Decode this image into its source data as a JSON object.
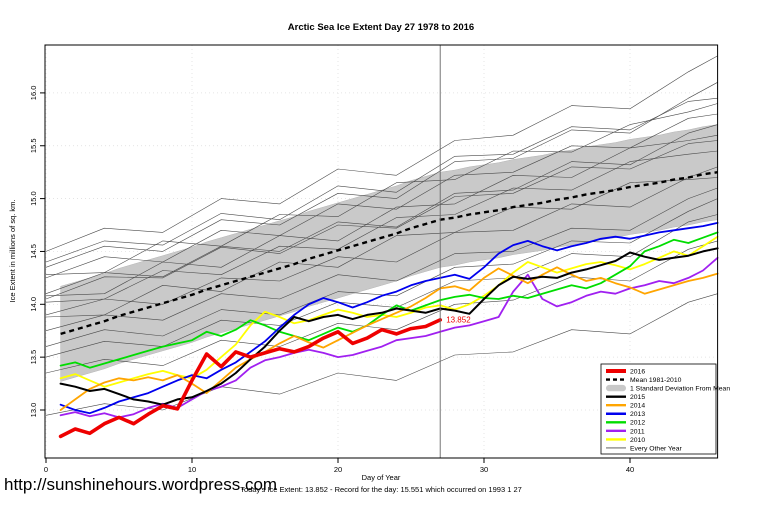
{
  "page": {
    "title": "Arctic Sea Ice Extent Day 27 1978 to 2016",
    "url_watermark": "http://sunshinehours.wordpress.com",
    "caption": "Today's Ice Extent: 13.852  - Record for the day: 15.551 which occurred on 1993 1 27"
  },
  "chart_data": {
    "type": "line",
    "title": "Arctic Sea Ice Extent Day 27 1978 to 2016",
    "xlabel": "Day of Year",
    "ylabel": "Ice Extent in millions of sq. km.",
    "xlim": [
      0,
      46
    ],
    "ylim": [
      12.55,
      16.45
    ],
    "xticks": [
      0,
      10,
      20,
      30,
      40
    ],
    "yticks": [
      13.0,
      13.5,
      14.0,
      14.5,
      15.0,
      15.5,
      16.0
    ],
    "grid": "dotted",
    "grid_color": "#dcdcdc",
    "marker_day": 27,
    "marker_color": "#666666",
    "annotation": {
      "text": "13.852",
      "day": 27,
      "value": 13.852,
      "color": "#ee0000"
    },
    "band": {
      "name": "1 Standard Deviation From Mean",
      "sigma": 0.45,
      "fill": "#c9c9c9",
      "edge": "#b5b5b5"
    },
    "mean": {
      "name": "Mean 1981-2010",
      "color": "#000000",
      "dashed": true,
      "width": 2.4,
      "day_start": 1,
      "values": [
        13.72,
        13.76,
        13.8,
        13.84,
        13.89,
        13.93,
        13.97,
        14.01,
        14.05,
        14.09,
        14.14,
        14.18,
        14.22,
        14.26,
        14.3,
        14.34,
        14.38,
        14.43,
        14.47,
        14.51,
        14.55,
        14.59,
        14.63,
        14.67,
        14.72,
        14.76,
        14.8,
        14.82,
        14.85,
        14.87,
        14.89,
        14.92,
        14.94,
        14.96,
        14.99,
        15.01,
        15.04,
        15.06,
        15.08,
        15.11,
        15.13,
        15.15,
        15.18,
        15.2,
        15.23,
        15.25
      ]
    },
    "series": [
      {
        "name": "2010",
        "color": "#ffff00",
        "width": 1.8,
        "day_start": 1,
        "values": [
          13.3,
          13.34,
          13.28,
          13.22,
          13.26,
          13.3,
          13.34,
          13.37,
          13.33,
          13.3,
          13.38,
          13.5,
          13.62,
          13.8,
          13.93,
          13.88,
          13.82,
          13.85,
          13.9,
          13.95,
          13.92,
          13.88,
          13.9,
          13.88,
          13.92,
          13.97,
          13.99,
          13.95,
          14.0,
          14.08,
          14.18,
          14.3,
          14.4,
          14.35,
          14.3,
          14.34,
          14.38,
          14.4,
          14.37,
          14.33,
          14.38,
          14.44,
          14.5,
          14.46,
          14.55,
          14.64
        ]
      },
      {
        "name": "2011",
        "color": "#a020f0",
        "width": 1.8,
        "day_start": 1,
        "values": [
          12.95,
          12.98,
          12.94,
          12.97,
          12.93,
          12.96,
          13.02,
          13.06,
          13.02,
          13.1,
          13.18,
          13.22,
          13.28,
          13.4,
          13.47,
          13.5,
          13.54,
          13.57,
          13.54,
          13.5,
          13.52,
          13.56,
          13.6,
          13.66,
          13.68,
          13.7,
          13.74,
          13.78,
          13.8,
          13.84,
          13.88,
          14.12,
          14.28,
          14.05,
          13.98,
          14.02,
          14.08,
          14.12,
          14.1,
          14.15,
          14.18,
          14.22,
          14.2,
          14.25,
          14.32,
          14.44
        ]
      },
      {
        "name": "2012",
        "color": "#00dd00",
        "width": 1.8,
        "day_start": 1,
        "values": [
          13.42,
          13.45,
          13.4,
          13.44,
          13.48,
          13.52,
          13.56,
          13.6,
          13.63,
          13.66,
          13.74,
          13.7,
          13.76,
          13.85,
          13.8,
          13.74,
          13.7,
          13.66,
          13.72,
          13.78,
          13.74,
          13.8,
          13.9,
          13.99,
          13.94,
          13.99,
          14.04,
          14.07,
          14.09,
          14.06,
          14.05,
          14.08,
          14.06,
          14.1,
          14.14,
          14.18,
          14.15,
          14.2,
          14.28,
          14.36,
          14.5,
          14.55,
          14.61,
          14.58,
          14.63,
          14.68
        ]
      },
      {
        "name": "2013",
        "color": "#0000ee",
        "width": 1.8,
        "day_start": 1,
        "values": [
          13.05,
          13.0,
          12.97,
          13.02,
          13.08,
          13.12,
          13.16,
          13.22,
          13.28,
          13.33,
          13.3,
          13.38,
          13.45,
          13.55,
          13.65,
          13.78,
          13.9,
          14.0,
          14.06,
          14.02,
          13.97,
          14.02,
          14.08,
          14.12,
          14.18,
          14.22,
          14.25,
          14.28,
          14.24,
          14.35,
          14.48,
          14.56,
          14.6,
          14.55,
          14.51,
          14.55,
          14.58,
          14.62,
          14.64,
          14.62,
          14.65,
          14.68,
          14.7,
          14.72,
          14.74,
          14.77
        ]
      },
      {
        "name": "2014",
        "color": "#ffa500",
        "width": 1.8,
        "day_start": 1,
        "values": [
          13.0,
          13.1,
          13.2,
          13.26,
          13.3,
          13.28,
          13.31,
          13.28,
          13.33,
          13.25,
          13.16,
          13.28,
          13.4,
          13.48,
          13.55,
          13.63,
          13.7,
          13.64,
          13.59,
          13.66,
          13.73,
          13.8,
          13.86,
          13.92,
          13.98,
          14.06,
          14.15,
          14.17,
          14.13,
          14.25,
          14.34,
          14.27,
          14.2,
          14.28,
          14.35,
          14.28,
          14.22,
          14.25,
          14.2,
          14.16,
          14.1,
          14.14,
          14.18,
          14.22,
          14.25,
          14.29
        ]
      },
      {
        "name": "2015",
        "color": "#000000",
        "width": 2.0,
        "day_start": 1,
        "values": [
          13.25,
          13.22,
          13.18,
          13.2,
          13.15,
          13.1,
          13.08,
          13.05,
          13.1,
          13.12,
          13.18,
          13.25,
          13.35,
          13.48,
          13.6,
          13.75,
          13.88,
          13.84,
          13.88,
          13.9,
          13.86,
          13.9,
          13.92,
          13.96,
          13.94,
          13.92,
          13.96,
          13.94,
          13.91,
          14.05,
          14.18,
          14.26,
          14.24,
          14.26,
          14.25,
          14.3,
          14.33,
          14.37,
          14.41,
          14.49,
          14.45,
          14.42,
          14.44,
          14.46,
          14.5,
          14.53
        ]
      },
      {
        "name": "2016",
        "color": "#ee0000",
        "width": 3.6,
        "day_start": 1,
        "values": [
          12.75,
          12.82,
          12.78,
          12.87,
          12.93,
          12.87,
          12.96,
          13.04,
          13.01,
          13.28,
          13.53,
          13.41,
          13.55,
          13.5,
          13.54,
          13.58,
          13.55,
          13.6,
          13.68,
          13.74,
          13.63,
          13.68,
          13.76,
          13.72,
          13.77,
          13.79,
          13.852
        ]
      }
    ],
    "every_other_year": {
      "name": "Every Other Year",
      "color": "#4a4a4a",
      "width": 0.6,
      "days": [
        0,
        4,
        8,
        12,
        16,
        20,
        24,
        28,
        32,
        36,
        40,
        44,
        46
      ],
      "lines": [
        [
          14.05,
          14.26,
          14.25,
          14.54,
          14.48,
          14.75,
          14.72,
          15.02,
          15.05,
          15.3,
          15.28,
          15.52,
          15.55
        ],
        [
          14.28,
          14.3,
          14.6,
          14.55,
          14.85,
          14.83,
          15.15,
          15.18,
          15.45,
          15.44,
          15.7,
          15.82,
          15.9
        ],
        [
          13.9,
          14.05,
          14.0,
          14.25,
          14.22,
          14.45,
          14.4,
          14.68,
          14.7,
          14.95,
          14.92,
          15.2,
          15.3
        ],
        [
          14.35,
          14.55,
          14.5,
          14.8,
          14.75,
          15.05,
          15.0,
          15.35,
          15.38,
          15.65,
          15.62,
          15.95,
          16.1
        ],
        [
          13.75,
          13.9,
          13.85,
          14.1,
          14.05,
          14.28,
          14.22,
          14.48,
          14.5,
          14.72,
          14.7,
          15.0,
          15.1
        ],
        [
          14.5,
          14.72,
          14.68,
          15.0,
          14.95,
          15.28,
          15.22,
          15.55,
          15.6,
          15.88,
          15.85,
          16.2,
          16.35
        ],
        [
          13.6,
          13.76,
          13.7,
          13.95,
          13.9,
          14.12,
          14.08,
          14.35,
          14.38,
          14.6,
          14.58,
          14.88,
          15.0
        ],
        [
          14.1,
          14.3,
          14.26,
          14.55,
          14.5,
          14.78,
          14.73,
          15.05,
          15.08,
          15.35,
          15.32,
          15.62,
          15.7
        ],
        [
          14.02,
          14.05,
          14.32,
          14.28,
          14.55,
          14.52,
          14.82,
          14.85,
          15.1,
          15.08,
          15.35,
          15.42,
          15.45
        ],
        [
          14.25,
          14.45,
          14.4,
          14.7,
          14.65,
          14.95,
          14.9,
          15.22,
          15.25,
          15.5,
          15.48,
          15.76,
          15.8
        ],
        [
          13.88,
          13.9,
          14.18,
          14.12,
          14.4,
          14.35,
          14.65,
          14.68,
          14.92,
          14.9,
          15.15,
          15.18,
          15.2
        ],
        [
          14.4,
          14.6,
          14.56,
          14.86,
          14.8,
          15.12,
          15.06,
          15.4,
          15.42,
          15.68,
          15.65,
          15.92,
          15.95
        ],
        [
          13.5,
          13.65,
          13.6,
          13.85,
          13.8,
          14.02,
          13.97,
          14.22,
          14.25,
          14.48,
          14.45,
          14.78,
          14.85
        ],
        [
          14.08,
          14.1,
          14.4,
          14.35,
          14.65,
          14.6,
          14.92,
          14.95,
          15.22,
          15.2,
          15.48,
          15.55,
          15.6
        ],
        [
          13.35,
          13.48,
          13.42,
          13.66,
          13.6,
          13.82,
          13.76,
          14.0,
          14.04,
          14.26,
          14.22,
          14.52,
          14.6
        ],
        [
          12.95,
          13.06,
          13.0,
          13.22,
          13.15,
          13.35,
          13.28,
          13.52,
          13.55,
          13.76,
          13.72,
          14.02,
          14.1
        ]
      ]
    },
    "legend": [
      {
        "label": "2016",
        "swatch": "line",
        "color": "#ee0000",
        "width": 4
      },
      {
        "label": "Mean 1981-2010",
        "swatch": "dashed",
        "color": "#000000",
        "width": 2.4
      },
      {
        "label": "1 Standard Deviation From Mean",
        "swatch": "band",
        "color": "#c9c9c9",
        "width": 7
      },
      {
        "label": "2015",
        "swatch": "line",
        "color": "#000000",
        "width": 2.4
      },
      {
        "label": "2014",
        "swatch": "line",
        "color": "#ffa500",
        "width": 2.4
      },
      {
        "label": "2013",
        "swatch": "line",
        "color": "#0000ee",
        "width": 2.4
      },
      {
        "label": "2012",
        "swatch": "line",
        "color": "#00dd00",
        "width": 2.4
      },
      {
        "label": "2011",
        "swatch": "line",
        "color": "#a020f0",
        "width": 2.4
      },
      {
        "label": "2010",
        "swatch": "line",
        "color": "#ffff00",
        "width": 2.4
      },
      {
        "label": "Every Other Year",
        "swatch": "line",
        "color": "#4a4a4a",
        "width": 0.8
      }
    ]
  }
}
